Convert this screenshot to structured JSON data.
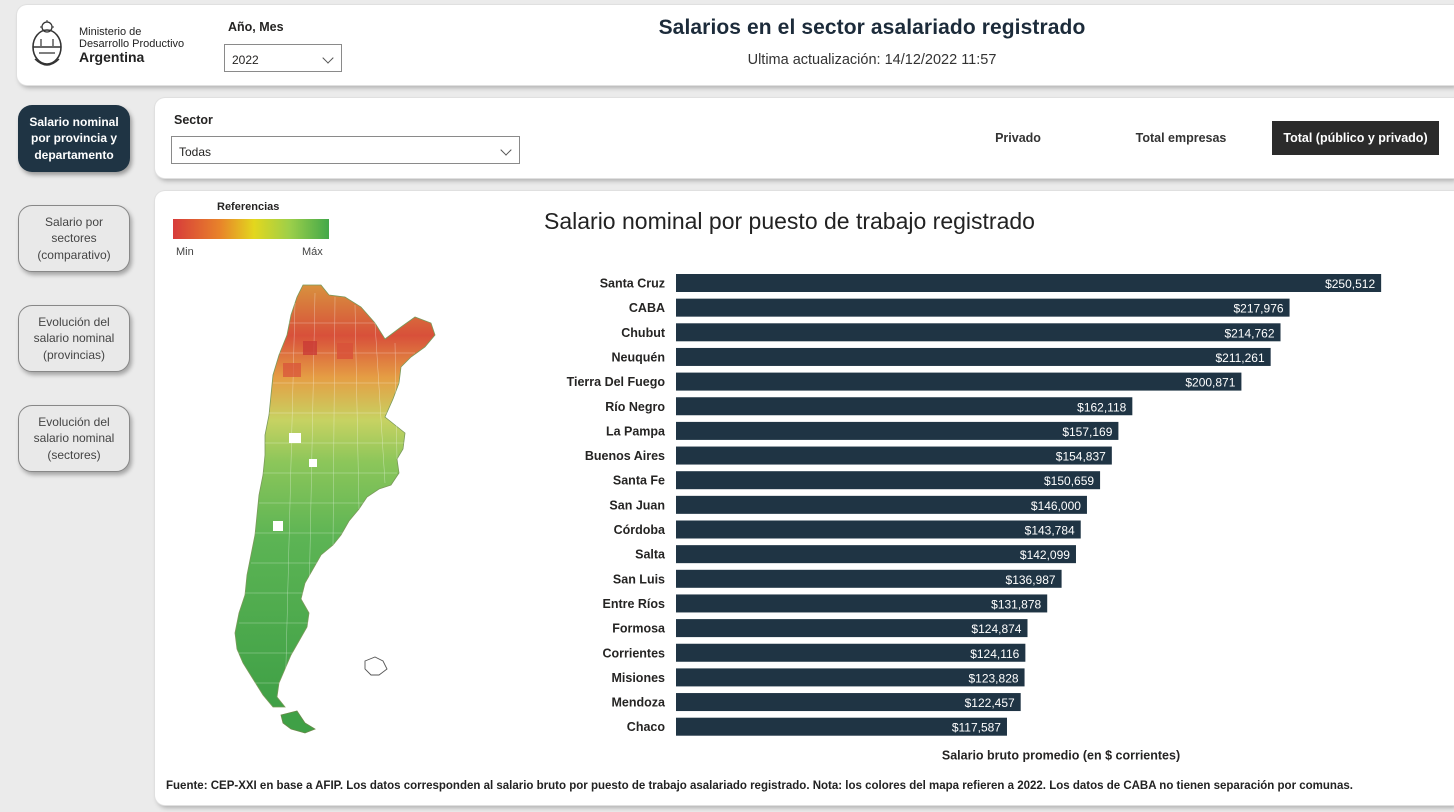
{
  "header": {
    "ministry_line1": "Ministerio de",
    "ministry_line2": "Desarrollo Productivo",
    "country": "Argentina",
    "period_label": "Año, Mes",
    "period_value": "2022",
    "title": "Salarios en el sector asalariado registrado",
    "last_update": "Ultima actualización: 14/12/2022 11:57"
  },
  "nav": {
    "items": [
      {
        "label": "Salario nominal por provincia y departamento",
        "active": true
      },
      {
        "label": "Salario por sectores (comparativo)",
        "active": false
      },
      {
        "label": "Evolución del salario nominal (provincias)",
        "active": false
      },
      {
        "label": "Evolución del salario nominal (sectores)",
        "active": false
      }
    ]
  },
  "filters": {
    "sector_label": "Sector",
    "sector_value": "Todas",
    "segments": [
      {
        "label": "Privado",
        "active": false
      },
      {
        "label": "Total empresas",
        "active": false
      },
      {
        "label": "Total (público y privado)",
        "active": true
      }
    ]
  },
  "legend": {
    "title": "Referencias",
    "min": "Min",
    "max": "Máx"
  },
  "colors": {
    "bar": "#1f3444",
    "nav_active": "#1f3444",
    "map_low": "#d73b3b",
    "map_mid": "#e3d71e",
    "map_high": "#43a84a"
  },
  "chart_data": {
    "type": "bar",
    "orientation": "horizontal",
    "title": "Salario nominal por puesto de trabajo registrado",
    "xlabel": "Salario bruto promedio (en $ corrientes)",
    "categories": [
      "Santa Cruz",
      "CABA",
      "Chubut",
      "Neuquén",
      "Tierra Del Fuego",
      "Río Negro",
      "La Pampa",
      "Buenos Aires",
      "Santa Fe",
      "San Juan",
      "Córdoba",
      "Salta",
      "San Luis",
      "Entre Ríos",
      "Formosa",
      "Corrientes",
      "Misiones",
      "Mendoza",
      "Chaco"
    ],
    "values": [
      250512,
      217976,
      214762,
      211261,
      200871,
      162118,
      157169,
      154837,
      150659,
      146000,
      143784,
      142099,
      136987,
      131878,
      124874,
      124116,
      123828,
      122457,
      117587
    ],
    "labels": [
      "$250,512",
      "$217,976",
      "$214,762",
      "$211,261",
      "$200,871",
      "$162,118",
      "$157,169",
      "$154,837",
      "$150,659",
      "$146,000",
      "$143,784",
      "$142,099",
      "$136,987",
      "$131,878",
      "$124,874",
      "$124,116",
      "$123,828",
      "$122,457",
      "$117,587"
    ],
    "xlim": [
      0,
      270000
    ],
    "grid": false,
    "legend": "none"
  },
  "footer": {
    "source": "Fuente: CEP-XXI en base a AFIP. Los datos corresponden al salario bruto por puesto de trabajo asalariado registrado. Nota: los colores del mapa refieren a 2022. Los datos de CABA no tienen separación por comunas."
  }
}
